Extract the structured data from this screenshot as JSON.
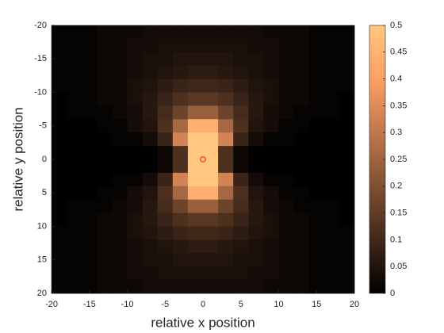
{
  "chart_data": {
    "type": "heatmap",
    "xlabel": "relative x position",
    "ylabel": "relative y position",
    "x": [
      -19,
      -17,
      -15,
      -13,
      -11,
      -9,
      -7,
      -5,
      -3,
      -1,
      1,
      3,
      5,
      7,
      9,
      11,
      13,
      15,
      17,
      19
    ],
    "y": [
      -19,
      -17,
      -15,
      -13,
      -11,
      -9,
      -7,
      -5,
      -3,
      -1,
      1,
      3,
      5,
      7,
      9,
      11,
      13,
      15,
      17,
      19
    ],
    "z": [
      [
        0.01,
        0.01,
        0.01,
        0.02,
        0.02,
        0.02,
        0.03,
        0.03,
        0.03,
        0.03,
        0.03,
        0.03,
        0.03,
        0.03,
        0.02,
        0.02,
        0.02,
        0.01,
        0.01,
        0.01
      ],
      [
        0.01,
        0.01,
        0.01,
        0.02,
        0.02,
        0.03,
        0.03,
        0.04,
        0.04,
        0.04,
        0.04,
        0.04,
        0.04,
        0.03,
        0.03,
        0.02,
        0.02,
        0.01,
        0.01,
        0.01
      ],
      [
        0.01,
        0.01,
        0.01,
        0.02,
        0.02,
        0.03,
        0.04,
        0.04,
        0.05,
        0.05,
        0.05,
        0.05,
        0.04,
        0.04,
        0.03,
        0.02,
        0.02,
        0.01,
        0.01,
        0.01
      ],
      [
        0.01,
        0.01,
        0.01,
        0.02,
        0.02,
        0.03,
        0.04,
        0.05,
        0.06,
        0.07,
        0.07,
        0.06,
        0.05,
        0.04,
        0.03,
        0.02,
        0.02,
        0.01,
        0.01,
        0.01
      ],
      [
        0.01,
        0.01,
        0.01,
        0.02,
        0.02,
        0.04,
        0.05,
        0.07,
        0.09,
        0.1,
        0.1,
        0.09,
        0.07,
        0.05,
        0.04,
        0.02,
        0.02,
        0.01,
        0.01,
        0.01
      ],
      [
        0,
        0.01,
        0.01,
        0.02,
        0.02,
        0.04,
        0.06,
        0.09,
        0.12,
        0.14,
        0.14,
        0.12,
        0.09,
        0.06,
        0.04,
        0.02,
        0.02,
        0.01,
        0.01,
        0
      ],
      [
        0,
        0.01,
        0.01,
        0.01,
        0.02,
        0.03,
        0.06,
        0.11,
        0.17,
        0.24,
        0.24,
        0.17,
        0.11,
        0.06,
        0.03,
        0.02,
        0.01,
        0.01,
        0.01,
        0
      ],
      [
        0,
        0,
        0,
        0.01,
        0.01,
        0.03,
        0.05,
        0.12,
        0.26,
        0.44,
        0.44,
        0.26,
        0.12,
        0.05,
        0.03,
        0.01,
        0.01,
        0,
        0,
        0
      ],
      [
        0,
        0,
        0,
        0,
        0.01,
        0.01,
        0.03,
        0.09,
        0.33,
        0.5,
        0.5,
        0.33,
        0.09,
        0.03,
        0.01,
        0.01,
        0,
        0,
        0,
        0
      ],
      [
        0,
        0,
        0,
        0,
        0,
        0,
        0,
        0.02,
        0.12,
        0.5,
        0.5,
        0.12,
        0.02,
        0,
        0,
        0,
        0,
        0,
        0,
        0
      ],
      [
        0,
        0,
        0,
        0,
        0,
        0,
        0,
        0.02,
        0.12,
        0.5,
        0.5,
        0.12,
        0.02,
        0,
        0,
        0,
        0,
        0,
        0,
        0
      ],
      [
        0,
        0,
        0,
        0,
        0.01,
        0.01,
        0.03,
        0.09,
        0.33,
        0.5,
        0.5,
        0.33,
        0.09,
        0.03,
        0.01,
        0.01,
        0,
        0,
        0,
        0
      ],
      [
        0,
        0,
        0,
        0.01,
        0.01,
        0.03,
        0.05,
        0.12,
        0.26,
        0.44,
        0.44,
        0.26,
        0.12,
        0.05,
        0.03,
        0.01,
        0.01,
        0,
        0,
        0
      ],
      [
        0,
        0.01,
        0.01,
        0.01,
        0.02,
        0.03,
        0.06,
        0.11,
        0.17,
        0.24,
        0.24,
        0.17,
        0.11,
        0.06,
        0.03,
        0.02,
        0.01,
        0.01,
        0.01,
        0
      ],
      [
        0,
        0.01,
        0.01,
        0.02,
        0.02,
        0.04,
        0.06,
        0.09,
        0.12,
        0.14,
        0.14,
        0.12,
        0.09,
        0.06,
        0.04,
        0.02,
        0.02,
        0.01,
        0.01,
        0
      ],
      [
        0.01,
        0.01,
        0.01,
        0.02,
        0.02,
        0.04,
        0.05,
        0.07,
        0.09,
        0.1,
        0.1,
        0.09,
        0.07,
        0.05,
        0.04,
        0.02,
        0.02,
        0.01,
        0.01,
        0.01
      ],
      [
        0.01,
        0.01,
        0.01,
        0.02,
        0.02,
        0.03,
        0.04,
        0.05,
        0.06,
        0.07,
        0.07,
        0.06,
        0.05,
        0.04,
        0.03,
        0.02,
        0.02,
        0.01,
        0.01,
        0.01
      ],
      [
        0.01,
        0.01,
        0.01,
        0.02,
        0.02,
        0.03,
        0.04,
        0.04,
        0.05,
        0.05,
        0.05,
        0.05,
        0.04,
        0.04,
        0.03,
        0.02,
        0.02,
        0.01,
        0.01,
        0.01
      ],
      [
        0.01,
        0.01,
        0.01,
        0.02,
        0.02,
        0.03,
        0.03,
        0.04,
        0.04,
        0.04,
        0.04,
        0.04,
        0.04,
        0.03,
        0.03,
        0.02,
        0.02,
        0.01,
        0.01,
        0.01
      ],
      [
        0.01,
        0.01,
        0.01,
        0.02,
        0.02,
        0.02,
        0.03,
        0.03,
        0.03,
        0.03,
        0.03,
        0.03,
        0.03,
        0.03,
        0.02,
        0.02,
        0.02,
        0.01,
        0.01,
        0.01
      ]
    ],
    "xlim": [
      -20,
      20
    ],
    "xticks": [
      -20,
      -15,
      -10,
      -5,
      0,
      5,
      10,
      15,
      20
    ],
    "ylim": [
      -20,
      20
    ],
    "yticks": [
      -20,
      -15,
      -10,
      -5,
      0,
      5,
      10,
      15,
      20
    ],
    "y_reversed": true,
    "colormap": "copper",
    "clim": [
      0,
      0.5
    ],
    "cticks": [
      0,
      0.05,
      0.1,
      0.15,
      0.2,
      0.25,
      0.3,
      0.35,
      0.4,
      0.45,
      0.5
    ],
    "marker": {
      "x": 0,
      "y": 0,
      "color": "#e8302a"
    }
  }
}
